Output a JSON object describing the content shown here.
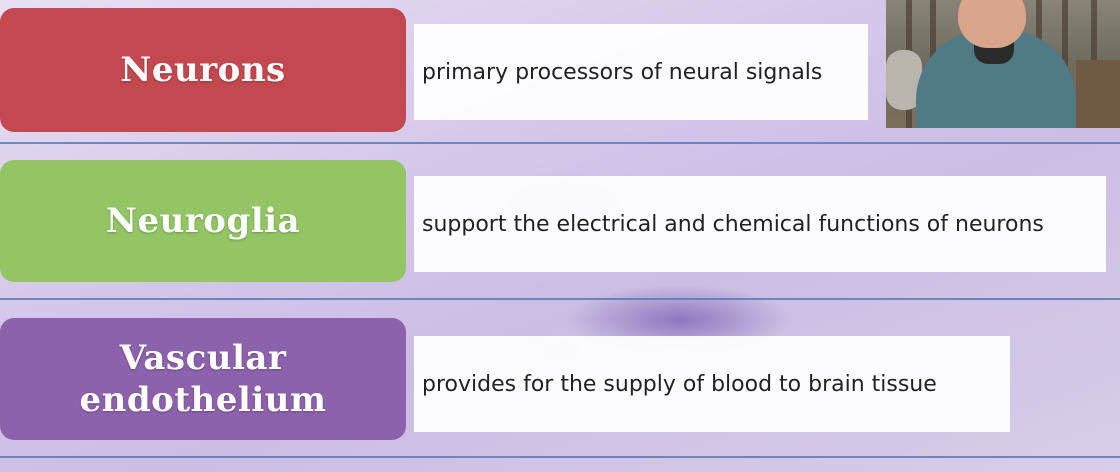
{
  "rows": [
    {
      "term": "Neurons",
      "description": "primary processors of neural signals",
      "color": "#c4484f"
    },
    {
      "term": "Neuroglia",
      "description": "support the electrical and chemical functions of neurons",
      "color": "#93c565"
    },
    {
      "term": "Vascular endothelium",
      "description": "provides for the supply of blood to brain tissue",
      "color": "#8d62ad"
    }
  ],
  "accent_line_color": "#5b7ab4"
}
